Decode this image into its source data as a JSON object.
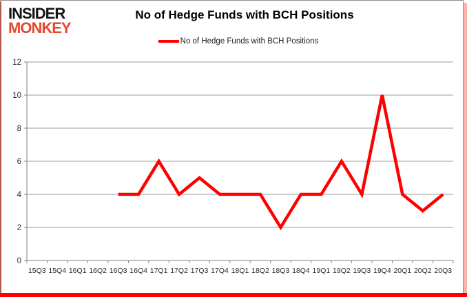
{
  "logo": {
    "line1": "INSIDER",
    "line2": "MONKEY"
  },
  "header": {
    "title": "No of Hedge Funds with BCH Positions"
  },
  "legend": {
    "label": "No of Hedge Funds with BCH Positions"
  },
  "colors": {
    "line": "#FF0000",
    "grid": "#9d9d9d",
    "axis": "#7f7f7f",
    "tick_label": "#2b2b2b",
    "logo_black": "#131313",
    "logo_red": "#e2492f",
    "border_red": "#ff0000"
  },
  "chart_data": {
    "type": "line",
    "title": "No of Hedge Funds with BCH Positions",
    "categories": [
      "15Q3",
      "15Q4",
      "16Q1",
      "16Q2",
      "16Q3",
      "16Q4",
      "17Q1",
      "17Q2",
      "17Q3",
      "17Q4",
      "18Q1",
      "18Q2",
      "18Q3",
      "18Q4",
      "19Q1",
      "19Q2",
      "19Q3",
      "19Q4",
      "20Q1",
      "20Q2",
      "20Q3"
    ],
    "series": [
      {
        "name": "No of Hedge Funds with BCH Positions",
        "color": "#FF0000",
        "values": [
          null,
          null,
          null,
          null,
          4,
          4,
          6,
          4,
          5,
          4,
          4,
          4,
          2,
          4,
          4,
          6,
          4,
          10,
          4,
          3,
          4
        ]
      }
    ],
    "xlabel": "",
    "ylabel": "",
    "ylim": [
      0,
      12
    ],
    "ytick_step": 2,
    "grid": true,
    "legend_position": "top-center",
    "markers": false
  }
}
